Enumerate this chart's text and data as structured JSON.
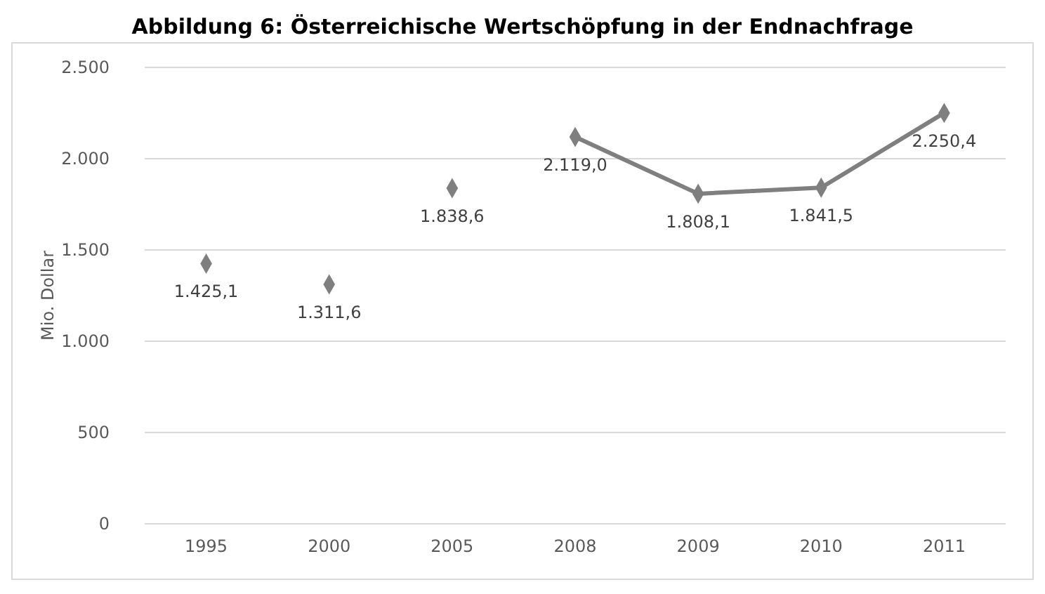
{
  "chart_data": {
    "type": "line",
    "title": "Abbildung 6: Österreichische Wertschöpfung in der Endnachfrage",
    "ylabel": "Mio. Dollar",
    "categories": [
      "1995",
      "2000",
      "2005",
      "2008",
      "2009",
      "2010",
      "2011"
    ],
    "series": [
      {
        "type": "scatter",
        "color": "#7f7f7f",
        "values": [
          1425.1,
          1311.6,
          1838.6,
          null,
          null,
          null,
          null
        ]
      },
      {
        "type": "line",
        "color": "#7f7f7f",
        "values": [
          null,
          null,
          null,
          2119.0,
          1808.1,
          1841.5,
          2250.4
        ]
      }
    ],
    "value_labels": [
      "1.425,1",
      "1.311,6",
      "1.838,6",
      "2.119,0",
      "1.808,1",
      "1.841,5",
      "2.250,4"
    ],
    "ylim": [
      0,
      2500
    ],
    "yticks": [
      {
        "value": 0,
        "label": "0"
      },
      {
        "value": 500,
        "label": "500"
      },
      {
        "value": 1000,
        "label": "1.000"
      },
      {
        "value": 1500,
        "label": "1.500"
      },
      {
        "value": 2000,
        "label": "2.000"
      },
      {
        "value": 2500,
        "label": "2.500"
      }
    ],
    "grid": "y",
    "marker": "diamond",
    "line_style": "solid"
  }
}
